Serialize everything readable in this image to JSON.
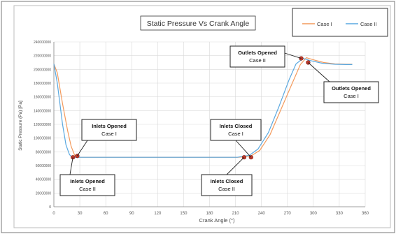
{
  "chart_data": {
    "type": "line",
    "title": "Static Pressure Vs Crank Angle",
    "xlabel": "Crank Angle (°)",
    "ylabel": "Static Pressure (Pa) [Pa]",
    "xlim": [
      0,
      360
    ],
    "ylim": [
      0,
      240000000
    ],
    "x_ticks": [
      "0",
      "30",
      "60",
      "90",
      "120",
      "150",
      "180",
      "210",
      "240",
      "270",
      "300",
      "330",
      "360"
    ],
    "y_ticks": [
      "0",
      "20000000",
      "40000000",
      "60000000",
      "80000000",
      "100000000",
      "120000000",
      "140000000",
      "160000000",
      "180000000",
      "200000000",
      "220000000",
      "240000000"
    ],
    "grid": true,
    "legend_position": "top-right",
    "series": [
      {
        "name": "Case I",
        "color": "#f39a5c",
        "points": [
          [
            0,
            208000000
          ],
          [
            4,
            195000000
          ],
          [
            10,
            150000000
          ],
          [
            16,
            110000000
          ],
          [
            20,
            88000000
          ],
          [
            24,
            75000000
          ],
          [
            28,
            72000000
          ],
          [
            40,
            72000000
          ],
          [
            100,
            72000000
          ],
          [
            150,
            72000000
          ],
          [
            200,
            72000000
          ],
          [
            214,
            72000000
          ],
          [
            228,
            74000000
          ],
          [
            238,
            82000000
          ],
          [
            250,
            105000000
          ],
          [
            262,
            140000000
          ],
          [
            275,
            178000000
          ],
          [
            285,
            207000000
          ],
          [
            292,
            217000000
          ],
          [
            300,
            214000000
          ],
          [
            312,
            210000000
          ],
          [
            325,
            208000000
          ],
          [
            338,
            207500000
          ],
          [
            345,
            207500000
          ]
        ]
      },
      {
        "name": "Case II",
        "color": "#5aa8e0",
        "points": [
          [
            0,
            208000000
          ],
          [
            4,
            180000000
          ],
          [
            10,
            120000000
          ],
          [
            14,
            90000000
          ],
          [
            18,
            76000000
          ],
          [
            21,
            72000000
          ],
          [
            30,
            72000000
          ],
          [
            100,
            72000000
          ],
          [
            150,
            72000000
          ],
          [
            200,
            72000000
          ],
          [
            212,
            72000000
          ],
          [
            226,
            75000000
          ],
          [
            236,
            84000000
          ],
          [
            248,
            108000000
          ],
          [
            260,
            145000000
          ],
          [
            272,
            185000000
          ],
          [
            280,
            208000000
          ],
          [
            288,
            216000000
          ],
          [
            296,
            213000000
          ],
          [
            310,
            209000000
          ],
          [
            325,
            207500000
          ],
          [
            338,
            207000000
          ],
          [
            345,
            207000000
          ]
        ]
      }
    ],
    "markers": [
      {
        "x": 22,
        "y": 72000000
      },
      {
        "x": 27,
        "y": 74000000
      },
      {
        "x": 220,
        "y": 72000000
      },
      {
        "x": 228,
        "y": 72000000
      },
      {
        "x": 286,
        "y": 216000000
      },
      {
        "x": 294,
        "y": 210000000
      }
    ],
    "annotations": [
      {
        "text": "Inlets Opened\nCase I"
      },
      {
        "text": "Inlets Opened\nCase II"
      },
      {
        "text": "Inlets Closed\nCase I"
      },
      {
        "text": "Inlets Closed\nCase II"
      },
      {
        "text": "Outlets Opened\nCase II"
      },
      {
        "text": "Outlets Opened\nCase I"
      }
    ]
  }
}
